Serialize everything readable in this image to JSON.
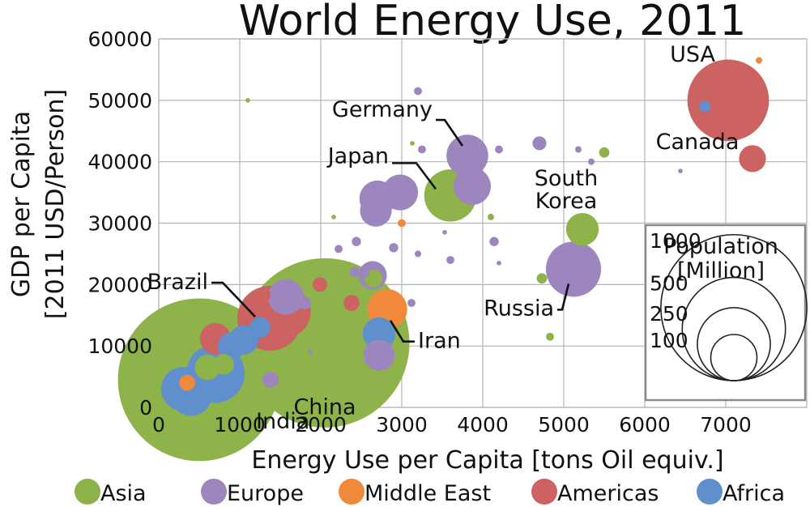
{
  "chart_data": {
    "type": "scatter",
    "title": "World Energy Use, 2011",
    "xlabel": "Energy Use per Capita [tons Oil equiv.]",
    "ylabel_lines": [
      "GDP per Capita",
      "[2011 USD/Person]"
    ],
    "xlim": [
      0,
      8000
    ],
    "ylim": [
      0,
      60000
    ],
    "x_ticks": [
      0,
      1000,
      2000,
      3000,
      4000,
      5000,
      6000,
      7000
    ],
    "y_ticks": [
      0,
      10000,
      20000,
      30000,
      40000,
      50000,
      60000
    ],
    "grid": true,
    "groups": [
      {
        "name": "Asia",
        "color": "#8db34a"
      },
      {
        "name": "Europe",
        "color": "#9d86bd"
      },
      {
        "name": "Middle East",
        "color": "#f08a3a"
      },
      {
        "name": "Americas",
        "color": "#cc6262"
      },
      {
        "name": "Africa",
        "color": "#5f8fcd"
      }
    ],
    "size_legend": {
      "title_lines": [
        "Population",
        "[Million]"
      ],
      "values": [
        1000,
        500,
        250,
        100
      ],
      "labels": [
        "1000",
        "500",
        "250",
        "100"
      ],
      "position": "lower-right"
    },
    "points": [
      {
        "x": 2050,
        "y": 10500,
        "pop": 1344,
        "group": "Asia",
        "label": "China"
      },
      {
        "x": 500,
        "y": 4500,
        "pop": 1241,
        "group": "Asia",
        "label": "India"
      },
      {
        "x": 7030,
        "y": 50000,
        "pop": 312,
        "group": "Americas",
        "label": "USA"
      },
      {
        "x": 3600,
        "y": 34500,
        "pop": 128,
        "group": "Asia",
        "label": "Japan"
      },
      {
        "x": 3810,
        "y": 41000,
        "pop": 82,
        "group": "Europe",
        "label": "Germany"
      },
      {
        "x": 5120,
        "y": 22500,
        "pop": 143,
        "group": "Europe",
        "label": "Russia"
      },
      {
        "x": 5230,
        "y": 29000,
        "pop": 50,
        "group": "Asia",
        "label": "South Korea"
      },
      {
        "x": 7330,
        "y": 40500,
        "pop": 34,
        "group": "Americas",
        "label": "Canada"
      },
      {
        "x": 1370,
        "y": 14500,
        "pop": 197,
        "group": "Americas",
        "label": "Brazil"
      },
      {
        "x": 2820,
        "y": 16000,
        "pop": 75,
        "group": "Middle East",
        "label": "Iran"
      },
      {
        "x": 2720,
        "y": 12000,
        "pop": 50,
        "group": "Africa"
      },
      {
        "x": 2720,
        "y": 8500,
        "pop": 46,
        "group": "Europe"
      },
      {
        "x": 1570,
        "y": 15500,
        "pop": 115,
        "group": "Americas"
      },
      {
        "x": 1570,
        "y": 18000,
        "pop": 60,
        "group": "Europe"
      },
      {
        "x": 1050,
        "y": 11000,
        "pop": 40,
        "group": "Africa"
      },
      {
        "x": 900,
        "y": 10000,
        "pop": 35,
        "group": "Africa"
      },
      {
        "x": 700,
        "y": 11200,
        "pop": 45,
        "group": "Americas"
      },
      {
        "x": 700,
        "y": 5500,
        "pop": 160,
        "group": "Africa"
      },
      {
        "x": 400,
        "y": 2000,
        "pop": 80,
        "group": "Africa"
      },
      {
        "x": 300,
        "y": 3000,
        "pop": 90,
        "group": "Africa"
      },
      {
        "x": 600,
        "y": 6500,
        "pop": 30,
        "group": "Asia"
      },
      {
        "x": 800,
        "y": 7000,
        "pop": 20,
        "group": "Asia"
      },
      {
        "x": 350,
        "y": 4000,
        "pop": 12,
        "group": "Middle East"
      },
      {
        "x": 1250,
        "y": 13000,
        "pop": 20,
        "group": "Africa"
      },
      {
        "x": 1380,
        "y": 4500,
        "pop": 12,
        "group": "Europe"
      },
      {
        "x": 2700,
        "y": 34000,
        "pop": 61,
        "group": "Europe"
      },
      {
        "x": 2980,
        "y": 35000,
        "pop": 60,
        "group": "Europe"
      },
      {
        "x": 2680,
        "y": 32000,
        "pop": 47,
        "group": "Europe"
      },
      {
        "x": 3870,
        "y": 36000,
        "pop": 65,
        "group": "Europe"
      },
      {
        "x": 2640,
        "y": 21500,
        "pop": 38,
        "group": "Europe"
      },
      {
        "x": 2650,
        "y": 21000,
        "pop": 15,
        "group": "Asia"
      },
      {
        "x": 1290,
        "y": 18200,
        "pop": 10,
        "group": "Americas"
      },
      {
        "x": 1990,
        "y": 20000,
        "pop": 10,
        "group": "Americas"
      },
      {
        "x": 2380,
        "y": 17000,
        "pop": 12,
        "group": "Americas"
      },
      {
        "x": 1800,
        "y": 17000,
        "pop": 8,
        "group": "Europe"
      },
      {
        "x": 2420,
        "y": 22000,
        "pop": 5,
        "group": "Europe"
      },
      {
        "x": 2540,
        "y": 22000,
        "pop": 5,
        "group": "Europe"
      },
      {
        "x": 2440,
        "y": 27000,
        "pop": 4,
        "group": "Europe"
      },
      {
        "x": 2900,
        "y": 26000,
        "pop": 4,
        "group": "Europe"
      },
      {
        "x": 2220,
        "y": 25800,
        "pop": 3,
        "group": "Europe"
      },
      {
        "x": 3600,
        "y": 24000,
        "pop": 3,
        "group": "Europe"
      },
      {
        "x": 4700,
        "y": 43000,
        "pop": 9,
        "group": "Europe"
      },
      {
        "x": 4200,
        "y": 42000,
        "pop": 3,
        "group": "Europe"
      },
      {
        "x": 3200,
        "y": 51500,
        "pop": 3,
        "group": "Europe"
      },
      {
        "x": 3250,
        "y": 42000,
        "pop": 3,
        "group": "Europe"
      },
      {
        "x": 3200,
        "y": 25000,
        "pop": 2,
        "group": "Europe"
      },
      {
        "x": 3120,
        "y": 17000,
        "pop": 3,
        "group": "Europe"
      },
      {
        "x": 3900,
        "y": 43000,
        "pop": 2,
        "group": "Europe"
      },
      {
        "x": 5180,
        "y": 42000,
        "pop": 2,
        "group": "Europe"
      },
      {
        "x": 5340,
        "y": 40000,
        "pop": 2,
        "group": "Europe"
      },
      {
        "x": 6440,
        "y": 38500,
        "pop": 1,
        "group": "Europe"
      },
      {
        "x": 4140,
        "y": 27000,
        "pop": 4,
        "group": "Europe"
      },
      {
        "x": 3530,
        "y": 28500,
        "pop": 1,
        "group": "Europe"
      },
      {
        "x": 4200,
        "y": 23500,
        "pop": 1,
        "group": "Europe"
      },
      {
        "x": 1870,
        "y": 9000,
        "pop": 1,
        "group": "Europe"
      },
      {
        "x": 5500,
        "y": 41500,
        "pop": 5,
        "group": "Asia"
      },
      {
        "x": 4730,
        "y": 21000,
        "pop": 5,
        "group": "Asia"
      },
      {
        "x": 4830,
        "y": 11500,
        "pop": 3,
        "group": "Asia"
      },
      {
        "x": 4100,
        "y": 31000,
        "pop": 2,
        "group": "Asia"
      },
      {
        "x": 3130,
        "y": 43000,
        "pop": 1,
        "group": "Asia"
      },
      {
        "x": 1100,
        "y": 50000,
        "pop": 1,
        "group": "Asia"
      },
      {
        "x": 2160,
        "y": 31000,
        "pop": 1,
        "group": "Asia"
      },
      {
        "x": 3000,
        "y": 30000,
        "pop": 3,
        "group": "Middle East"
      },
      {
        "x": 7410,
        "y": 56500,
        "pop": 2,
        "group": "Middle East"
      },
      {
        "x": 6740,
        "y": 49000,
        "pop": 6,
        "group": "Africa"
      }
    ]
  }
}
